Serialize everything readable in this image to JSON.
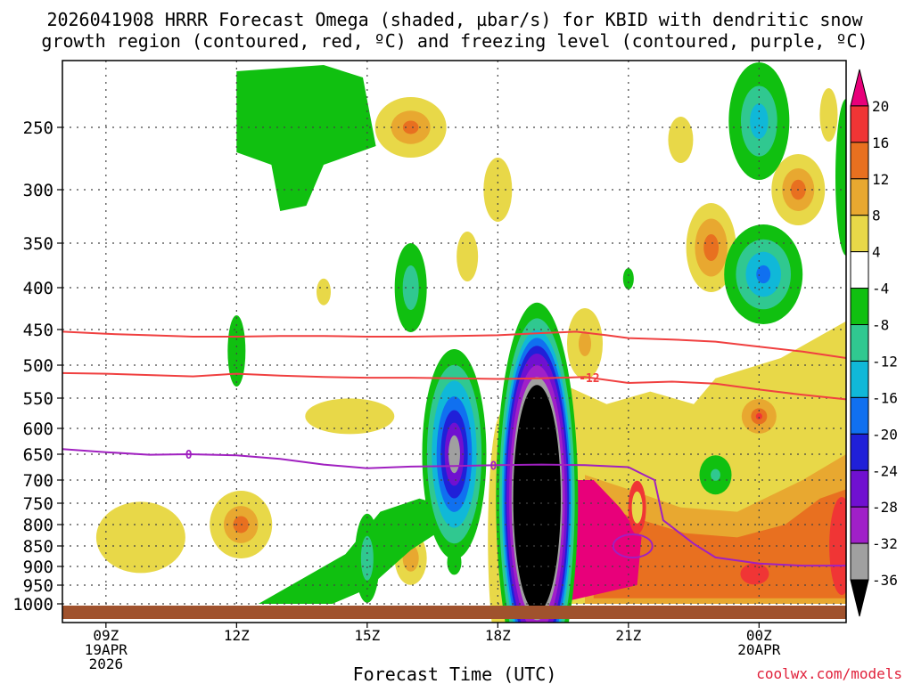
{
  "chart_data": {
    "type": "heatmap",
    "title_line1": "2026041908 HRRR Forecast Omega (shaded, µbar/s) for KBID with dendritic snow",
    "title_line2": "growth region (contoured, red, ºC) and freezing level (contoured, purple, ºC)",
    "xlabel": "Forecast Time (UTC)",
    "credit": "coolwx.com/models",
    "x_range_hours": [
      8,
      26
    ],
    "x_ticks": [
      {
        "hour": 9,
        "line1": "09Z",
        "line2": "19APR",
        "line3": "2026"
      },
      {
        "hour": 12,
        "line1": "12Z"
      },
      {
        "hour": 15,
        "line1": "15Z"
      },
      {
        "hour": 18,
        "line1": "18Z"
      },
      {
        "hour": 21,
        "line1": "21Z"
      },
      {
        "hour": 24,
        "line1": "00Z",
        "line2": "20APR"
      }
    ],
    "y_ticks_hpa": [
      250,
      300,
      350,
      400,
      450,
      500,
      550,
      600,
      650,
      700,
      750,
      800,
      850,
      900,
      950,
      1000
    ],
    "colorbar": {
      "labels": [
        "20",
        "16",
        "12",
        "8",
        "4",
        "-4",
        "-8",
        "-12",
        "-16",
        "-20",
        "-24",
        "-28",
        "-32",
        "-36"
      ],
      "colors": [
        "#e8007a",
        "#f03535",
        "#e87020",
        "#e8a830",
        "#e8d848",
        "#ffffff",
        "#10c010",
        "#30c890",
        "#10b8d8",
        "#1070f0",
        "#2020d8",
        "#7010d0",
        "#a020c8",
        "#a0a0a0",
        "#000000"
      ]
    },
    "contours": [
      {
        "name": "dendritic snow growth -12 C",
        "color": "#f04040",
        "label": "-12",
        "label_hour": 20.1,
        "x": [
          8.0,
          9.0,
          10.0,
          11.0,
          12.0,
          13.0,
          14.0,
          15.0,
          16.0,
          17.0,
          18.0,
          19.0,
          20.0,
          21.0,
          22.0,
          23.0,
          24.0,
          25.0,
          26.0
        ],
        "p": [
          512,
          513,
          515,
          517,
          513,
          516,
          518,
          519,
          519,
          520,
          521,
          520,
          518,
          527,
          525,
          528,
          537,
          545,
          552
        ]
      },
      {
        "name": "dendritic snow growth upper",
        "color": "#f04040",
        "x": [
          8.0,
          9.0,
          10.0,
          11.0,
          12.0,
          13.0,
          14.0,
          15.0,
          16.0,
          17.0,
          18.0,
          19.0,
          19.8,
          20.5,
          21.0,
          22.0,
          23.0,
          24.0,
          25.0,
          26.0
        ],
        "p": [
          453,
          456,
          458,
          460,
          460,
          459,
          459,
          460,
          460,
          459,
          458,
          455,
          453,
          458,
          462,
          464,
          467,
          474,
          481,
          490
        ]
      },
      {
        "name": "freezing level 0 C",
        "color": "#a020c0",
        "label": "0",
        "label_hour": 10.9,
        "label2_hour": 17.9,
        "x": [
          8.0,
          9.0,
          10.0,
          10.9,
          12.0,
          13.0,
          14.0,
          15.0,
          16.0,
          17.0,
          18.0,
          19.0,
          20.0,
          21.0,
          21.6,
          21.8,
          22.5,
          23.0,
          24.0,
          25.0,
          26.0
        ],
        "p": [
          640,
          646,
          651,
          650,
          652,
          659,
          670,
          677,
          674,
          673,
          671,
          670,
          671,
          675,
          700,
          790,
          845,
          878,
          893,
          898,
          898
        ]
      }
    ],
    "shaded_regions": [
      {
        "value_min": -36,
        "center_hour": 18.9,
        "center_hpa": 740,
        "peak": -40
      },
      {
        "value_min": -28,
        "center_hour": 17.0,
        "center_hpa": 660,
        "peak": -33
      },
      {
        "value_min": -16,
        "center_hour": 24.0,
        "center_hpa": 385,
        "peak": -18
      },
      {
        "value_min": -16,
        "center_hour": 24.0,
        "center_hpa": 262,
        "peak": -16
      },
      {
        "value_min": 20,
        "center_hour": 20.4,
        "center_hpa": 850,
        "peak": 24
      },
      {
        "value_min": 12,
        "center_hour": 24.0,
        "center_hpa": 580,
        "peak": 14
      },
      {
        "value_min": 12,
        "center_hour": 25.0,
        "center_hpa": 300,
        "peak": 14
      }
    ]
  }
}
